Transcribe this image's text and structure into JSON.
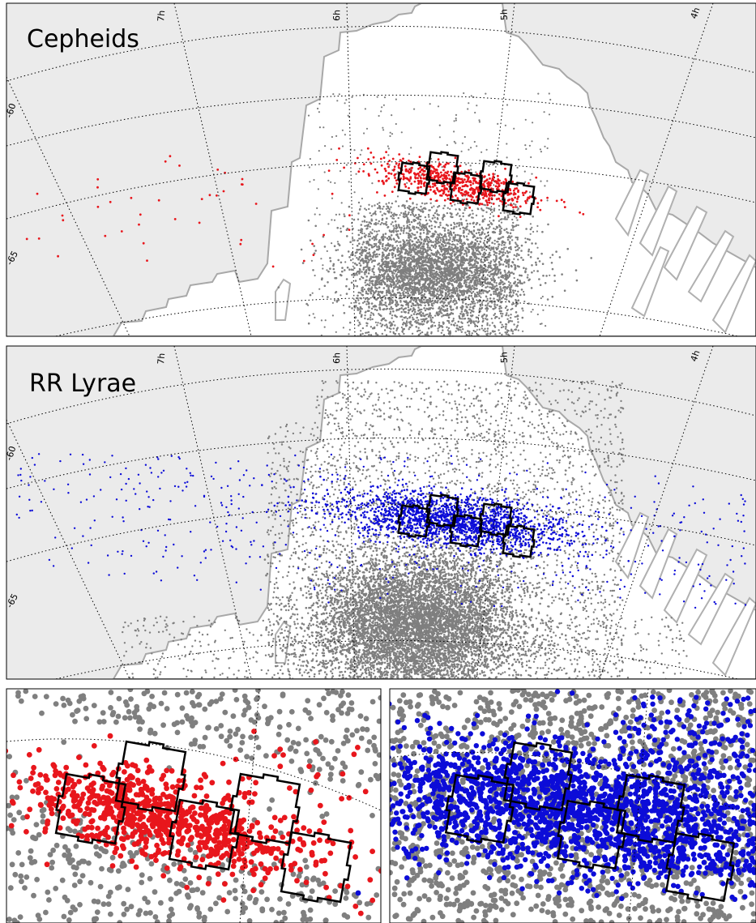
{
  "panels": [
    {
      "id": "cepheids",
      "title": "Cepheids",
      "highlight_color": "#e8161c"
    },
    {
      "id": "rrlyrae",
      "title": "RR Lyrae",
      "highlight_color": "#0c0cd8"
    }
  ],
  "ra_ticks": [
    "7h",
    "6h",
    "5h",
    "4h"
  ],
  "dec_ticks": [
    "-60",
    "-65"
  ],
  "colors": {
    "background_sky": "#ebebeb",
    "survey_area": "#ffffff",
    "survey_outline": "#a8a8a8",
    "field_star": "#7f7f7f",
    "cepheid": "#e8161c",
    "rr_lyrae": "#0c0cd8",
    "tile_outline": "#000000"
  },
  "chart_data": [
    {
      "type": "scatter",
      "title": "Cepheids",
      "projection": "polar sky map (RA / Dec)",
      "x_axis": {
        "label": "",
        "ticks": [
          "7h",
          "6h",
          "5h",
          "4h"
        ]
      },
      "y_axis": {
        "label": "",
        "ticks": [
          "-60",
          "-65"
        ]
      },
      "grid": true,
      "series": [
        {
          "color": "#7f7f7f",
          "description_of_shape": "dense cloud centered near 5.3h, -65"
        },
        {
          "color": "#e8161c",
          "description_of_shape": "band along the tile strip near -62, sparse to the east out to 7h"
        }
      ],
      "overlays": {
        "tile_footprints": 5,
        "tile_centers_ra_dec": [
          [
            "5h35m",
            -62.3
          ],
          [
            "5h20m",
            -61.8
          ],
          [
            "5h05m",
            -62.3
          ],
          [
            "4h52m",
            -62.0
          ],
          [
            "4h40m",
            -62.6
          ]
        ]
      }
    },
    {
      "type": "scatter",
      "title": "RR Lyrae",
      "projection": "polar sky map (RA / Dec)",
      "x_axis": {
        "label": "",
        "ticks": [
          "7h",
          "6h",
          "5h",
          "4h"
        ]
      },
      "y_axis": {
        "label": "",
        "ticks": [
          "-60",
          "-65"
        ]
      },
      "grid": true,
      "series": [
        {
          "color": "#7f7f7f",
          "description_of_shape": "very dense cloud filling survey area south of -62"
        },
        {
          "color": "#0c0cd8",
          "description_of_shape": "broad band along -62, spanning 7h to 4h"
        }
      ],
      "overlays": {
        "tile_footprints": 5
      }
    },
    {
      "type": "scatter",
      "title": "",
      "note": "zoom on Cepheid tile region",
      "series": [
        {
          "color": "#7f7f7f"
        },
        {
          "color": "#e8161c"
        },
        {
          "color": "#0c0cd8"
        }
      ],
      "overlays": {
        "tile_footprints": 5
      }
    },
    {
      "type": "scatter",
      "title": "",
      "note": "zoom on RR Lyrae tile region",
      "series": [
        {
          "color": "#7f7f7f"
        },
        {
          "color": "#0c0cd8"
        }
      ],
      "overlays": {
        "tile_footprints": 5
      }
    }
  ]
}
